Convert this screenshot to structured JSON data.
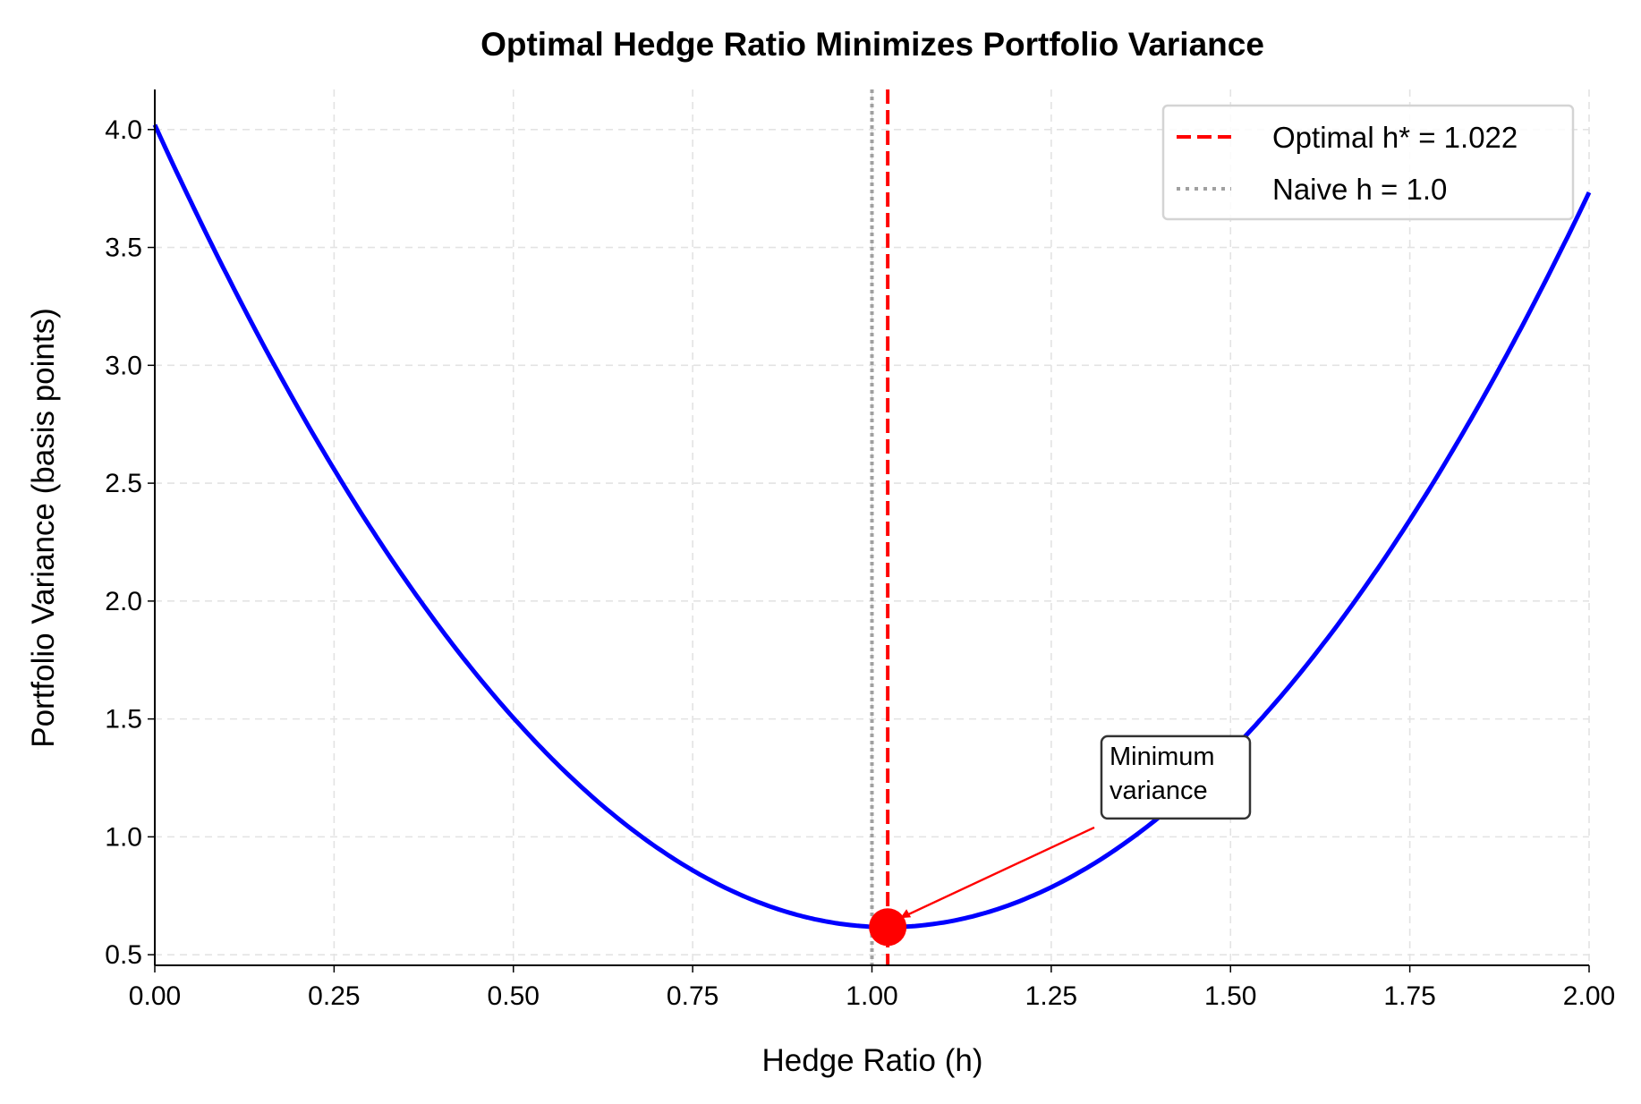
{
  "chart_data": {
    "type": "line",
    "title": "Optimal Hedge Ratio Minimizes Portfolio Variance",
    "xlabel": "Hedge Ratio (h)",
    "ylabel": "Portfolio Variance (basis points)",
    "xlim": [
      0,
      2
    ],
    "ylim": [
      0.455,
      4.17
    ],
    "xticks": [
      "0.00",
      "0.25",
      "0.50",
      "0.75",
      "1.00",
      "1.25",
      "1.50",
      "1.75",
      "2.00"
    ],
    "yticks": [
      "0.5",
      "1.0",
      "1.5",
      "2.0",
      "2.5",
      "3.0",
      "3.5",
      "4.0"
    ],
    "grid": true,
    "legend_position": "top-right",
    "curve": {
      "color": "#0000ff",
      "x": [
        0.0,
        0.1,
        0.2,
        0.3,
        0.4,
        0.5,
        0.6,
        0.7,
        0.8,
        0.9,
        1.0,
        1.022,
        1.1,
        1.2,
        1.3,
        1.4,
        1.5,
        1.6,
        1.7,
        1.8,
        1.9,
        2.0
      ],
      "y": [
        4.02,
        3.38,
        2.82,
        2.31,
        1.88,
        1.51,
        1.2,
        0.955,
        0.777,
        0.665,
        0.619,
        0.617,
        0.637,
        0.72,
        0.869,
        1.083,
        1.361,
        1.705,
        2.114,
        2.588,
        3.127,
        3.73
      ]
    },
    "vlines": [
      {
        "name": "Optimal h* = 1.022",
        "x": 1.022,
        "color": "#ff0000",
        "style": "dashed"
      },
      {
        "name": "Naive h = 1.0",
        "x": 1.0,
        "color": "#a0a0a0",
        "style": "dotted"
      }
    ],
    "min_point": {
      "x": 1.022,
      "y": 0.617,
      "color": "#ff0000"
    },
    "annotation": {
      "lines": [
        "Minimum",
        "variance"
      ],
      "text_x": 1.32,
      "text_y": 1.07,
      "arrow_color": "#ff0000"
    }
  }
}
